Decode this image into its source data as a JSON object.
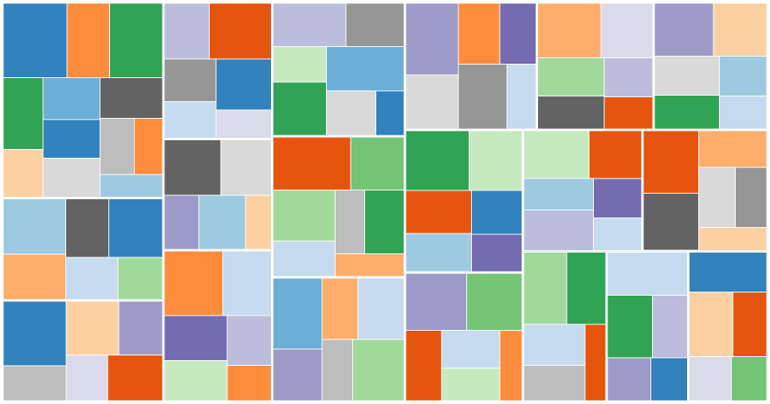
{
  "chart_data": {
    "type": "treemap",
    "title": "",
    "palette": [
      "#3182bd",
      "#6baed6",
      "#9ecae1",
      "#c6dbef",
      "#e6550d",
      "#fd8d3c",
      "#fdae6b",
      "#fdd0a2",
      "#31a354",
      "#74c476",
      "#a1d99b",
      "#c7e9c0",
      "#756bb1",
      "#9e9ac8",
      "#bcbddc",
      "#dadaeb",
      "#636363",
      "#969696",
      "#bdbdbd",
      "#d9d9d9"
    ],
    "groups": [
      {
        "name": "",
        "color": "#6baed6",
        "children": [
          {
            "name": "",
            "value": 30,
            "color": "#3182bd"
          },
          {
            "name": "",
            "value": 20,
            "color": "#fd8d3c"
          },
          {
            "name": "",
            "value": 25,
            "color": "#31a354"
          },
          {
            "name": "",
            "value": 18,
            "color": "#31a354"
          },
          {
            "name": "",
            "value": 12,
            "color": "#fdd0a2"
          },
          {
            "name": "",
            "value": 15,
            "color": "#6baed6"
          },
          {
            "name": "",
            "value": 14,
            "color": "#3182bd"
          },
          {
            "name": "",
            "value": 14,
            "color": "#d9d9d9"
          },
          {
            "name": "",
            "value": 16,
            "color": "#636363"
          },
          {
            "name": "",
            "value": 12,
            "color": "#bdbdbd"
          },
          {
            "name": "",
            "value": 10,
            "color": "#fd8d3c"
          },
          {
            "name": "",
            "value": 9,
            "color": "#9ecae1"
          }
        ]
      },
      {
        "name": "",
        "color": "#9ecae1",
        "children": [
          {
            "name": "",
            "value": 22,
            "color": "#9ecae1"
          },
          {
            "name": "",
            "value": 18,
            "color": "#fdae6b"
          },
          {
            "name": "",
            "value": 16,
            "color": "#636363"
          },
          {
            "name": "",
            "value": 20,
            "color": "#3182bd"
          },
          {
            "name": "",
            "value": 14,
            "color": "#c6dbef"
          },
          {
            "name": "",
            "value": 12,
            "color": "#a1d99b"
          }
        ]
      },
      {
        "name": "",
        "color": "#3182bd",
        "children": [
          {
            "name": "",
            "value": 26,
            "color": "#3182bd"
          },
          {
            "name": "",
            "value": 14,
            "color": "#bdbdbd"
          },
          {
            "name": "",
            "value": 18,
            "color": "#fdd0a2"
          },
          {
            "name": "",
            "value": 15,
            "color": "#9e9ac8"
          },
          {
            "name": "",
            "value": 12,
            "color": "#dadaeb"
          },
          {
            "name": "",
            "value": 16,
            "color": "#e6550d"
          }
        ]
      },
      {
        "name": "",
        "color": "#bcbddc",
        "children": [
          {
            "name": "",
            "value": 16,
            "color": "#bcbddc"
          },
          {
            "name": "",
            "value": 22,
            "color": "#e6550d"
          },
          {
            "name": "",
            "value": 14,
            "color": "#969696"
          },
          {
            "name": "",
            "value": 12,
            "color": "#c6dbef"
          },
          {
            "name": "",
            "value": 18,
            "color": "#3182bd"
          },
          {
            "name": "",
            "value": 10,
            "color": "#dadaeb"
          }
        ]
      },
      {
        "name": "",
        "color": "#636363",
        "children": [
          {
            "name": "",
            "value": 20,
            "color": "#636363"
          },
          {
            "name": "",
            "value": 18,
            "color": "#d9d9d9"
          },
          {
            "name": "",
            "value": 12,
            "color": "#9e9ac8"
          },
          {
            "name": "",
            "value": 16,
            "color": "#9ecae1"
          },
          {
            "name": "",
            "value": 9,
            "color": "#fdd0a2"
          }
        ]
      },
      {
        "name": "",
        "color": "#3182bd",
        "children": [
          {
            "name": "",
            "value": 24,
            "color": "#fd8d3c"
          },
          {
            "name": "",
            "value": 20,
            "color": "#c6dbef"
          },
          {
            "name": "",
            "value": 18,
            "color": "#756bb1"
          },
          {
            "name": "",
            "value": 16,
            "color": "#c7e9c0"
          },
          {
            "name": "",
            "value": 14,
            "color": "#bcbddc"
          },
          {
            "name": "",
            "value": 10,
            "color": "#fd8d3c"
          }
        ]
      },
      {
        "name": "",
        "color": "#bcbddc",
        "children": [
          {
            "name": "",
            "value": 20,
            "color": "#bcbddc"
          },
          {
            "name": "",
            "value": 16,
            "color": "#969696"
          },
          {
            "name": "",
            "value": 12,
            "color": "#c7e9c0"
          },
          {
            "name": "",
            "value": 18,
            "color": "#31a354"
          },
          {
            "name": "",
            "value": 22,
            "color": "#6baed6"
          },
          {
            "name": "",
            "value": 14,
            "color": "#d9d9d9"
          },
          {
            "name": "",
            "value": 8,
            "color": "#3182bd"
          }
        ]
      },
      {
        "name": "",
        "color": "#74c476",
        "children": [
          {
            "name": "",
            "value": 26,
            "color": "#e6550d"
          },
          {
            "name": "",
            "value": 18,
            "color": "#74c476"
          },
          {
            "name": "",
            "value": 20,
            "color": "#a1d99b"
          },
          {
            "name": "",
            "value": 14,
            "color": "#c6dbef"
          },
          {
            "name": "",
            "value": 12,
            "color": "#bdbdbd"
          },
          {
            "name": "",
            "value": 16,
            "color": "#31a354"
          },
          {
            "name": "",
            "value": 10,
            "color": "#fdae6b"
          }
        ]
      },
      {
        "name": "",
        "color": "#fdae6b",
        "children": [
          {
            "name": "",
            "value": 22,
            "color": "#6baed6"
          },
          {
            "name": "",
            "value": 16,
            "color": "#9e9ac8"
          },
          {
            "name": "",
            "value": 14,
            "color": "#fdae6b"
          },
          {
            "name": "",
            "value": 18,
            "color": "#c6dbef"
          },
          {
            "name": "",
            "value": 12,
            "color": "#bdbdbd"
          },
          {
            "name": "",
            "value": 20,
            "color": "#a1d99b"
          }
        ]
      },
      {
        "name": "",
        "color": "#969696",
        "children": [
          {
            "name": "",
            "value": 24,
            "color": "#9e9ac8"
          },
          {
            "name": "",
            "value": 18,
            "color": "#d9d9d9"
          },
          {
            "name": "",
            "value": 16,
            "color": "#fd8d3c"
          },
          {
            "name": "",
            "value": 14,
            "color": "#756bb1"
          },
          {
            "name": "",
            "value": 20,
            "color": "#969696"
          },
          {
            "name": "",
            "value": 12,
            "color": "#c6dbef"
          }
        ]
      },
      {
        "name": "",
        "color": "#fdae6b",
        "children": [
          {
            "name": "",
            "value": 22,
            "color": "#fdae6b"
          },
          {
            "name": "",
            "value": 18,
            "color": "#dadaeb"
          },
          {
            "name": "",
            "value": 16,
            "color": "#a1d99b"
          },
          {
            "name": "",
            "value": 14,
            "color": "#636363"
          },
          {
            "name": "",
            "value": 12,
            "color": "#bcbddc"
          },
          {
            "name": "",
            "value": 10,
            "color": "#e6550d"
          }
        ]
      },
      {
        "name": "",
        "color": "#9e9ac8",
        "children": [
          {
            "name": "",
            "value": 20,
            "color": "#9e9ac8"
          },
          {
            "name": "",
            "value": 18,
            "color": "#fdd0a2"
          },
          {
            "name": "",
            "value": 16,
            "color": "#d9d9d9"
          },
          {
            "name": "",
            "value": 14,
            "color": "#31a354"
          },
          {
            "name": "",
            "value": 12,
            "color": "#9ecae1"
          },
          {
            "name": "",
            "value": 10,
            "color": "#c6dbef"
          }
        ]
      },
      {
        "name": "",
        "color": "#74c476",
        "children": [
          {
            "name": "",
            "value": 24,
            "color": "#31a354"
          },
          {
            "name": "",
            "value": 20,
            "color": "#c7e9c0"
          },
          {
            "name": "",
            "value": 18,
            "color": "#e6550d"
          },
          {
            "name": "",
            "value": 16,
            "color": "#9ecae1"
          },
          {
            "name": "",
            "value": 14,
            "color": "#3182bd"
          },
          {
            "name": "",
            "value": 12,
            "color": "#756bb1"
          }
        ]
      },
      {
        "name": "",
        "color": "#9e9ac8",
        "children": [
          {
            "name": "",
            "value": 22,
            "color": "#9e9ac8"
          },
          {
            "name": "",
            "value": 20,
            "color": "#74c476"
          },
          {
            "name": "",
            "value": 16,
            "color": "#e6550d"
          },
          {
            "name": "",
            "value": 14,
            "color": "#c6dbef"
          },
          {
            "name": "",
            "value": 12,
            "color": "#c7e9c0"
          },
          {
            "name": "",
            "value": 10,
            "color": "#fd8d3c"
          }
        ]
      },
      {
        "name": "",
        "color": "#c7e9c0",
        "children": [
          {
            "name": "",
            "value": 20,
            "color": "#c7e9c0"
          },
          {
            "name": "",
            "value": 16,
            "color": "#e6550d"
          },
          {
            "name": "",
            "value": 14,
            "color": "#9ecae1"
          },
          {
            "name": "",
            "value": 18,
            "color": "#bcbddc"
          },
          {
            "name": "",
            "value": 12,
            "color": "#756bb1"
          },
          {
            "name": "",
            "value": 10,
            "color": "#c6dbef"
          }
        ]
      },
      {
        "name": "",
        "color": "#e6550d",
        "children": [
          {
            "name": "",
            "value": 22,
            "color": "#e6550d"
          },
          {
            "name": "",
            "value": 20,
            "color": "#636363"
          },
          {
            "name": "",
            "value": 16,
            "color": "#fdae6b"
          },
          {
            "name": "",
            "value": 14,
            "color": "#d9d9d9"
          },
          {
            "name": "",
            "value": 12,
            "color": "#969696"
          },
          {
            "name": "",
            "value": 10,
            "color": "#fdd0a2"
          }
        ]
      },
      {
        "name": "",
        "color": "#a1d99b",
        "children": [
          {
            "name": "",
            "value": 20,
            "color": "#a1d99b"
          },
          {
            "name": "",
            "value": 18,
            "color": "#31a354"
          },
          {
            "name": "",
            "value": 16,
            "color": "#c6dbef"
          },
          {
            "name": "",
            "value": 14,
            "color": "#bdbdbd"
          },
          {
            "name": "",
            "value": 10,
            "color": "#e6550d"
          }
        ]
      },
      {
        "name": "",
        "color": "#c6dbef",
        "children": [
          {
            "name": "",
            "value": 22,
            "color": "#c6dbef"
          },
          {
            "name": "",
            "value": 18,
            "color": "#31a354"
          },
          {
            "name": "",
            "value": 14,
            "color": "#bcbddc"
          },
          {
            "name": "",
            "value": 12,
            "color": "#9e9ac8"
          },
          {
            "name": "",
            "value": 10,
            "color": "#3182bd"
          }
        ]
      },
      {
        "name": "",
        "color": "#fdd0a2",
        "children": [
          {
            "name": "",
            "value": 20,
            "color": "#3182bd"
          },
          {
            "name": "",
            "value": 18,
            "color": "#fdd0a2"
          },
          {
            "name": "",
            "value": 14,
            "color": "#e6550d"
          },
          {
            "name": "",
            "value": 12,
            "color": "#dadaeb"
          },
          {
            "name": "",
            "value": 10,
            "color": "#74c476"
          }
        ]
      }
    ]
  }
}
